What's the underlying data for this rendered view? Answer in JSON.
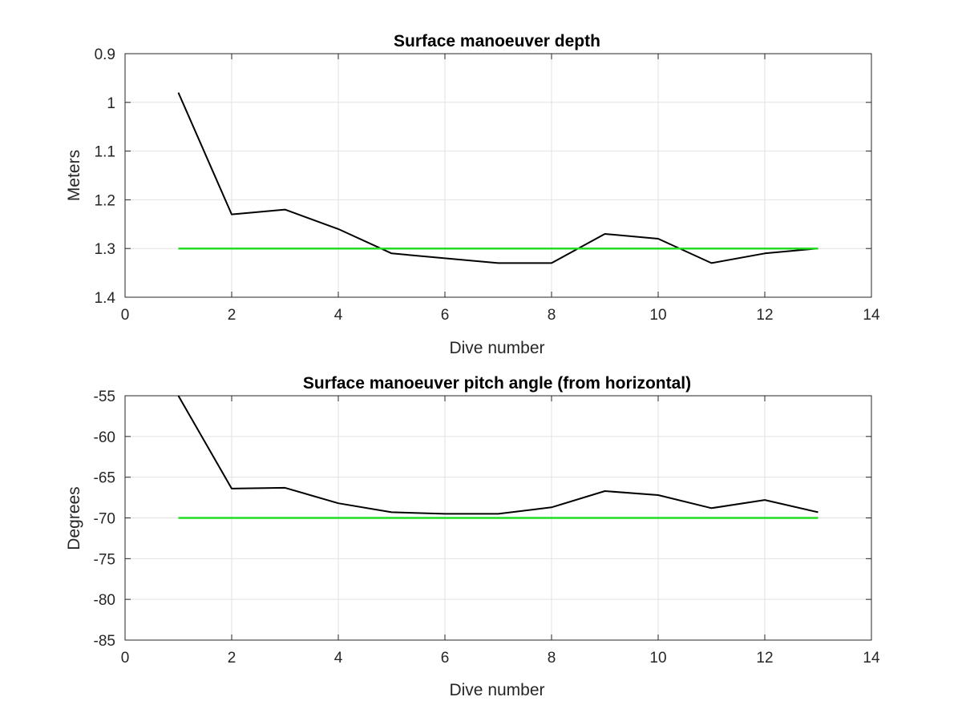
{
  "chart_data": [
    {
      "type": "line",
      "title": "Surface manoeuver depth",
      "xlabel": "Dive number",
      "ylabel": "Meters",
      "xlim": [
        0,
        14
      ],
      "ylim": [
        0.9,
        1.4
      ],
      "y_reversed": true,
      "grid": true,
      "xticks": [
        "0",
        "2",
        "4",
        "6",
        "8",
        "10",
        "12",
        "14"
      ],
      "yticks": [
        "0.9",
        "1",
        "1.1",
        "1.2",
        "1.3",
        "1.4"
      ],
      "series": [
        {
          "color": "#000000",
          "x": [
            1,
            2,
            3,
            4,
            5,
            6,
            7,
            8,
            9,
            10,
            11,
            12,
            13
          ],
          "values": [
            0.98,
            1.23,
            1.22,
            1.26,
            1.31,
            1.32,
            1.33,
            1.33,
            1.27,
            1.28,
            1.33,
            1.31,
            1.3
          ]
        },
        {
          "color": "#22dd22",
          "x": [
            1,
            13
          ],
          "values": [
            1.3,
            1.3
          ]
        }
      ]
    },
    {
      "type": "line",
      "title": "Surface manoeuver pitch angle (from horizontal)",
      "xlabel": "Dive number",
      "ylabel": "Degrees",
      "xlim": [
        0,
        14
      ],
      "ylim": [
        -85,
        -55
      ],
      "y_reversed": false,
      "grid": true,
      "xticks": [
        "0",
        "2",
        "4",
        "6",
        "8",
        "10",
        "12",
        "14"
      ],
      "yticks": [
        "-55",
        "-60",
        "-65",
        "-70",
        "-75",
        "-80",
        "-85"
      ],
      "series": [
        {
          "color": "#000000",
          "x": [
            1,
            2,
            3,
            4,
            5,
            6,
            7,
            8,
            9,
            10,
            11,
            12,
            13
          ],
          "values": [
            -55,
            -66.4,
            -66.3,
            -68.2,
            -69.3,
            -69.5,
            -69.5,
            -68.7,
            -66.7,
            -67.2,
            -68.8,
            -67.8,
            -69.3
          ]
        },
        {
          "color": "#22dd22",
          "x": [
            1,
            13
          ],
          "values": [
            -70,
            -70
          ]
        }
      ]
    }
  ]
}
